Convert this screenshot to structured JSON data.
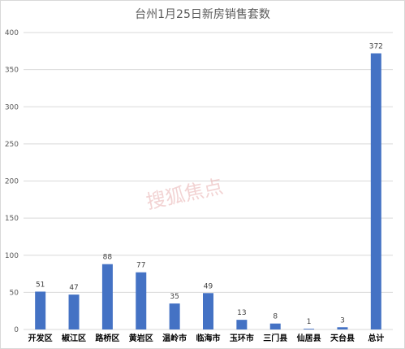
{
  "chart_data": {
    "type": "bar",
    "title": "台州1月25日新房销售套数",
    "categories": [
      "开发区",
      "椒江区",
      "路桥区",
      "黄岩区",
      "温岭市",
      "临海市",
      "玉环市",
      "三门县",
      "仙居县",
      "天台县",
      "总计"
    ],
    "values": [
      51,
      47,
      88,
      77,
      35,
      49,
      13,
      8,
      1,
      3,
      372
    ],
    "ylim": [
      0,
      400
    ],
    "yticks": [
      0,
      50,
      100,
      150,
      200,
      250,
      300,
      350,
      400
    ],
    "grid": true,
    "xlabel": "",
    "ylabel": "",
    "bar_color": "#4472c4",
    "grid_color": "#d9d9d9"
  },
  "watermark": {
    "text": "搜狐焦点"
  }
}
